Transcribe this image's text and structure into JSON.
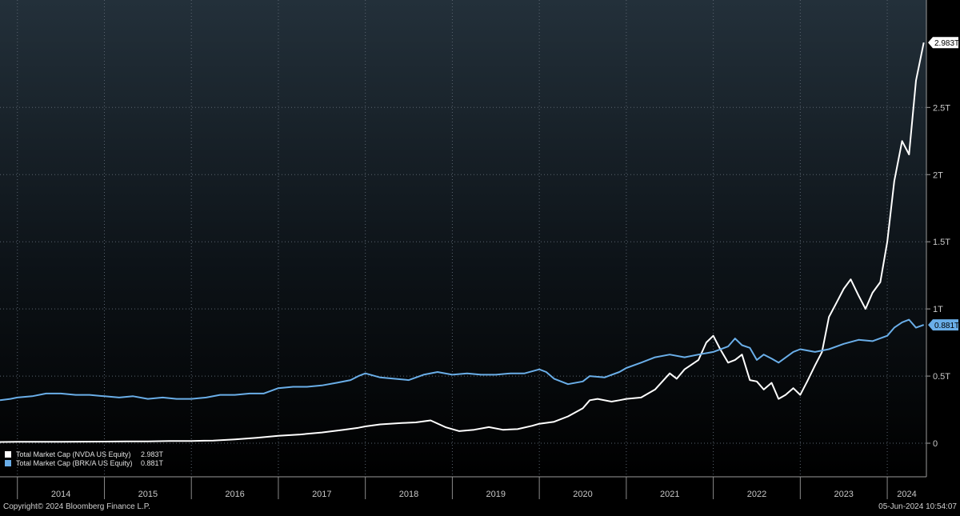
{
  "chart_data": {
    "type": "line",
    "title": "",
    "xlabel": "",
    "ylabel": "",
    "x_range": [
      2013.8,
      2024.45
    ],
    "ylim": [
      -0.25,
      3.3
    ],
    "y_ticks": [
      {
        "value": 0,
        "label": "0"
      },
      {
        "value": 0.5,
        "label": "0.5T"
      },
      {
        "value": 1,
        "label": "1T"
      },
      {
        "value": 1.5,
        "label": "1.5T"
      },
      {
        "value": 2,
        "label": "2T"
      },
      {
        "value": 2.5,
        "label": "2.5T"
      }
    ],
    "year_labels": [
      "2014",
      "2015",
      "2016",
      "2017",
      "2018",
      "2019",
      "2020",
      "2021",
      "2022",
      "2023",
      "2024"
    ],
    "grid": true,
    "legend_position": "bottom-left",
    "series": [
      {
        "name": "Total Market Cap (NVDA US Equity)",
        "last_value_label": "2.983T",
        "legend_value": "2.983T",
        "color": "#ffffff",
        "points": [
          [
            2013.8,
            0.009
          ],
          [
            2014.0,
            0.01
          ],
          [
            2014.5,
            0.011
          ],
          [
            2015.0,
            0.012
          ],
          [
            2015.25,
            0.013
          ],
          [
            2015.5,
            0.014
          ],
          [
            2015.75,
            0.016
          ],
          [
            2016.0,
            0.017
          ],
          [
            2016.25,
            0.02
          ],
          [
            2016.5,
            0.028
          ],
          [
            2016.75,
            0.04
          ],
          [
            2017.0,
            0.055
          ],
          [
            2017.25,
            0.065
          ],
          [
            2017.5,
            0.08
          ],
          [
            2017.75,
            0.1
          ],
          [
            2017.92,
            0.115
          ],
          [
            2018.0,
            0.125
          ],
          [
            2018.17,
            0.14
          ],
          [
            2018.42,
            0.15
          ],
          [
            2018.58,
            0.155
          ],
          [
            2018.75,
            0.17
          ],
          [
            2018.92,
            0.12
          ],
          [
            2019.08,
            0.09
          ],
          [
            2019.25,
            0.1
          ],
          [
            2019.42,
            0.12
          ],
          [
            2019.58,
            0.1
          ],
          [
            2019.75,
            0.105
          ],
          [
            2019.92,
            0.13
          ],
          [
            2020.0,
            0.145
          ],
          [
            2020.17,
            0.16
          ],
          [
            2020.33,
            0.2
          ],
          [
            2020.5,
            0.26
          ],
          [
            2020.58,
            0.32
          ],
          [
            2020.67,
            0.33
          ],
          [
            2020.83,
            0.31
          ],
          [
            2020.92,
            0.32
          ],
          [
            2021.0,
            0.33
          ],
          [
            2021.17,
            0.34
          ],
          [
            2021.33,
            0.4
          ],
          [
            2021.5,
            0.52
          ],
          [
            2021.58,
            0.48
          ],
          [
            2021.67,
            0.55
          ],
          [
            2021.83,
            0.62
          ],
          [
            2021.92,
            0.75
          ],
          [
            2022.0,
            0.8
          ],
          [
            2022.08,
            0.7
          ],
          [
            2022.17,
            0.6
          ],
          [
            2022.25,
            0.62
          ],
          [
            2022.33,
            0.66
          ],
          [
            2022.42,
            0.47
          ],
          [
            2022.5,
            0.46
          ],
          [
            2022.58,
            0.4
          ],
          [
            2022.67,
            0.45
          ],
          [
            2022.75,
            0.33
          ],
          [
            2022.83,
            0.36
          ],
          [
            2022.92,
            0.41
          ],
          [
            2023.0,
            0.36
          ],
          [
            2023.08,
            0.46
          ],
          [
            2023.17,
            0.58
          ],
          [
            2023.25,
            0.68
          ],
          [
            2023.33,
            0.94
          ],
          [
            2023.42,
            1.05
          ],
          [
            2023.5,
            1.15
          ],
          [
            2023.58,
            1.22
          ],
          [
            2023.67,
            1.1
          ],
          [
            2023.75,
            1.0
          ],
          [
            2023.83,
            1.12
          ],
          [
            2023.92,
            1.2
          ],
          [
            2024.0,
            1.5
          ],
          [
            2024.08,
            1.95
          ],
          [
            2024.17,
            2.25
          ],
          [
            2024.25,
            2.15
          ],
          [
            2024.33,
            2.7
          ],
          [
            2024.42,
            2.983
          ]
        ]
      },
      {
        "name": "Total Market Cap (BRK/A US Equity)",
        "last_value_label": "0.881T",
        "legend_value": "0.881T",
        "color": "#6aaee8",
        "points": [
          [
            2013.8,
            0.32
          ],
          [
            2013.92,
            0.33
          ],
          [
            2014.0,
            0.34
          ],
          [
            2014.17,
            0.35
          ],
          [
            2014.33,
            0.37
          ],
          [
            2014.5,
            0.37
          ],
          [
            2014.67,
            0.36
          ],
          [
            2014.83,
            0.36
          ],
          [
            2015.0,
            0.35
          ],
          [
            2015.17,
            0.34
          ],
          [
            2015.33,
            0.35
          ],
          [
            2015.5,
            0.33
          ],
          [
            2015.67,
            0.34
          ],
          [
            2015.83,
            0.33
          ],
          [
            2016.0,
            0.33
          ],
          [
            2016.17,
            0.34
          ],
          [
            2016.33,
            0.36
          ],
          [
            2016.5,
            0.36
          ],
          [
            2016.67,
            0.37
          ],
          [
            2016.83,
            0.37
          ],
          [
            2017.0,
            0.41
          ],
          [
            2017.17,
            0.42
          ],
          [
            2017.33,
            0.42
          ],
          [
            2017.5,
            0.43
          ],
          [
            2017.67,
            0.45
          ],
          [
            2017.83,
            0.47
          ],
          [
            2017.92,
            0.5
          ],
          [
            2018.0,
            0.52
          ],
          [
            2018.17,
            0.49
          ],
          [
            2018.33,
            0.48
          ],
          [
            2018.5,
            0.47
          ],
          [
            2018.67,
            0.51
          ],
          [
            2018.83,
            0.53
          ],
          [
            2019.0,
            0.51
          ],
          [
            2019.17,
            0.52
          ],
          [
            2019.33,
            0.51
          ],
          [
            2019.5,
            0.51
          ],
          [
            2019.67,
            0.52
          ],
          [
            2019.83,
            0.52
          ],
          [
            2020.0,
            0.55
          ],
          [
            2020.08,
            0.53
          ],
          [
            2020.17,
            0.48
          ],
          [
            2020.33,
            0.44
          ],
          [
            2020.5,
            0.46
          ],
          [
            2020.58,
            0.5
          ],
          [
            2020.75,
            0.49
          ],
          [
            2020.92,
            0.53
          ],
          [
            2021.0,
            0.56
          ],
          [
            2021.17,
            0.6
          ],
          [
            2021.33,
            0.64
          ],
          [
            2021.5,
            0.66
          ],
          [
            2021.67,
            0.64
          ],
          [
            2021.83,
            0.66
          ],
          [
            2022.0,
            0.68
          ],
          [
            2022.17,
            0.72
          ],
          [
            2022.25,
            0.78
          ],
          [
            2022.33,
            0.73
          ],
          [
            2022.42,
            0.71
          ],
          [
            2022.5,
            0.62
          ],
          [
            2022.58,
            0.66
          ],
          [
            2022.67,
            0.63
          ],
          [
            2022.75,
            0.6
          ],
          [
            2022.92,
            0.68
          ],
          [
            2023.0,
            0.7
          ],
          [
            2023.17,
            0.68
          ],
          [
            2023.33,
            0.7
          ],
          [
            2023.5,
            0.74
          ],
          [
            2023.67,
            0.77
          ],
          [
            2023.83,
            0.76
          ],
          [
            2024.0,
            0.8
          ],
          [
            2024.08,
            0.86
          ],
          [
            2024.17,
            0.9
          ],
          [
            2024.25,
            0.92
          ],
          [
            2024.33,
            0.86
          ],
          [
            2024.42,
            0.881
          ]
        ]
      }
    ]
  },
  "footer": {
    "copyright": "Copyright© 2024 Bloomberg Finance L.P.",
    "timestamp": "05-Jun-2024 10:54:07"
  }
}
